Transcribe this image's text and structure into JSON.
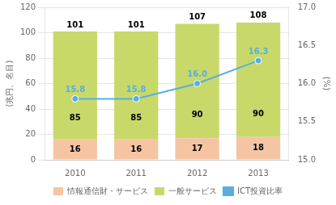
{
  "chart_data": {
    "type": "bar",
    "stacked": true,
    "categories": [
      "2010",
      "2011",
      "2012",
      "2013"
    ],
    "ylabel": "(兆円、名目)",
    "y2label": "(%)",
    "series": [
      {
        "name": "情報通信財・サービス",
        "color": "#f5c5a3",
        "values": [
          16,
          16,
          17,
          18
        ],
        "data_labels": true
      },
      {
        "name": "一般サービス",
        "color": "#c8d96a",
        "values": [
          85,
          85,
          90,
          90
        ],
        "data_labels": true
      },
      {
        "name": "ICT投資比率",
        "type": "line",
        "axis": "y2",
        "color": "#5aade0",
        "marker": "circle",
        "values": [
          15.8,
          15.8,
          16.0,
          16.3
        ],
        "value_labels": [
          "15.8",
          "15.8",
          "16.0",
          "16.3"
        ],
        "data_labels": true
      }
    ],
    "totals": [
      101,
      101,
      107,
      108
    ],
    "ylim": [
      0,
      120
    ],
    "yticks": [
      0,
      20,
      40,
      60,
      80,
      100,
      120
    ],
    "y2lim": [
      15.0,
      17.0
    ],
    "y2ticks": [
      {
        "value": 15.0,
        "label": "15.0"
      },
      {
        "value": 15.5,
        "label": "15.5"
      },
      {
        "value": 16.0,
        "label": "16.0"
      },
      {
        "value": 16.5,
        "label": "16.5"
      },
      {
        "value": 17.0,
        "label": "17.0"
      }
    ],
    "grid": true,
    "legend": "bottom"
  }
}
